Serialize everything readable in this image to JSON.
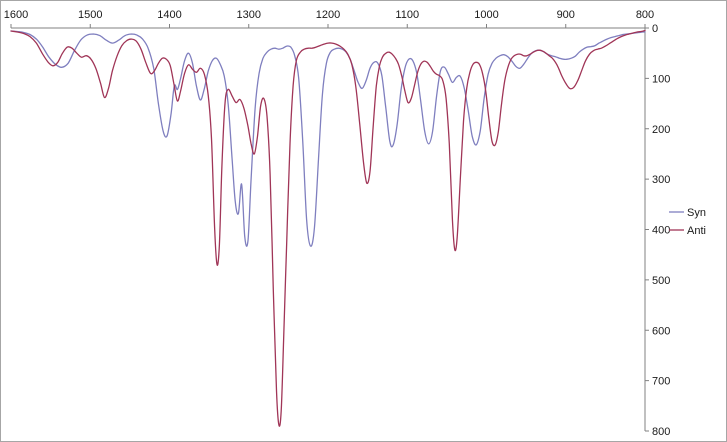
{
  "chart_data": {
    "type": "line",
    "title": "",
    "xlabel": "",
    "ylabel": "",
    "grid": false,
    "plot_border_color": "#a6a6a6",
    "axis_color": "#808080",
    "x_axis": {
      "position": "top",
      "reversed": true,
      "min": 800,
      "max": 1600,
      "ticks": [
        1600,
        1500,
        1400,
        1300,
        1200,
        1100,
        1000,
        900,
        800
      ]
    },
    "y_axis": {
      "position": "right",
      "reversed": true,
      "min": 0,
      "max": 800,
      "ticks": [
        0,
        100,
        200,
        300,
        400,
        500,
        600,
        700,
        800
      ]
    },
    "legend": {
      "position": "right",
      "entries": [
        "Syn",
        "Anti"
      ]
    },
    "series": [
      {
        "name": "Syn",
        "color": "#7f7fbf",
        "points": [
          [
            1600,
            6
          ],
          [
            1592,
            7
          ],
          [
            1584,
            9
          ],
          [
            1576,
            13
          ],
          [
            1568,
            22
          ],
          [
            1560,
            38
          ],
          [
            1552,
            58
          ],
          [
            1544,
            72
          ],
          [
            1536,
            78
          ],
          [
            1528,
            70
          ],
          [
            1520,
            45
          ],
          [
            1512,
            24
          ],
          [
            1504,
            14
          ],
          [
            1496,
            12
          ],
          [
            1488,
            15
          ],
          [
            1480,
            24
          ],
          [
            1472,
            30
          ],
          [
            1464,
            24
          ],
          [
            1456,
            15
          ],
          [
            1448,
            12
          ],
          [
            1441,
            14
          ],
          [
            1434,
            22
          ],
          [
            1427,
            40
          ],
          [
            1420,
            80
          ],
          [
            1414,
            150
          ],
          [
            1408,
            205
          ],
          [
            1403,
            214
          ],
          [
            1398,
            170
          ],
          [
            1394,
            115
          ],
          [
            1390,
            122
          ],
          [
            1386,
            100
          ],
          [
            1381,
            65
          ],
          [
            1376,
            50
          ],
          [
            1371,
            70
          ],
          [
            1366,
            115
          ],
          [
            1361,
            143
          ],
          [
            1356,
            120
          ],
          [
            1351,
            85
          ],
          [
            1346,
            65
          ],
          [
            1341,
            60
          ],
          [
            1336,
            72
          ],
          [
            1331,
            95
          ],
          [
            1326,
            150
          ],
          [
            1321,
            260
          ],
          [
            1317,
            345
          ],
          [
            1313,
            368
          ],
          [
            1309,
            310
          ],
          [
            1305,
            415
          ],
          [
            1301,
            422
          ],
          [
            1297,
            300
          ],
          [
            1292,
            160
          ],
          [
            1287,
            90
          ],
          [
            1282,
            60
          ],
          [
            1277,
            48
          ],
          [
            1272,
            42
          ],
          [
            1267,
            40
          ],
          [
            1262,
            42
          ],
          [
            1257,
            40
          ],
          [
            1252,
            36
          ],
          [
            1247,
            38
          ],
          [
            1242,
            55
          ],
          [
            1237,
            100
          ],
          [
            1232,
            220
          ],
          [
            1227,
            380
          ],
          [
            1222,
            433
          ],
          [
            1217,
            395
          ],
          [
            1212,
            260
          ],
          [
            1207,
            130
          ],
          [
            1202,
            70
          ],
          [
            1197,
            48
          ],
          [
            1192,
            42
          ],
          [
            1187,
            40
          ],
          [
            1182,
            42
          ],
          [
            1177,
            48
          ],
          [
            1172,
            62
          ],
          [
            1167,
            85
          ],
          [
            1162,
            108
          ],
          [
            1157,
            120
          ],
          [
            1152,
            105
          ],
          [
            1147,
            80
          ],
          [
            1142,
            68
          ],
          [
            1137,
            70
          ],
          [
            1132,
            95
          ],
          [
            1127,
            160
          ],
          [
            1122,
            225
          ],
          [
            1118,
            233
          ],
          [
            1113,
            195
          ],
          [
            1108,
            125
          ],
          [
            1103,
            80
          ],
          [
            1098,
            62
          ],
          [
            1093,
            65
          ],
          [
            1088,
            90
          ],
          [
            1083,
            145
          ],
          [
            1078,
            205
          ],
          [
            1073,
            230
          ],
          [
            1068,
            205
          ],
          [
            1063,
            135
          ],
          [
            1058,
            85
          ],
          [
            1053,
            78
          ],
          [
            1048,
            92
          ],
          [
            1043,
            108
          ],
          [
            1038,
            98
          ],
          [
            1033,
            96
          ],
          [
            1028,
            120
          ],
          [
            1023,
            165
          ],
          [
            1018,
            215
          ],
          [
            1013,
            232
          ],
          [
            1008,
            205
          ],
          [
            1003,
            140
          ],
          [
            998,
            92
          ],
          [
            993,
            70
          ],
          [
            988,
            60
          ],
          [
            983,
            55
          ],
          [
            978,
            53
          ],
          [
            973,
            57
          ],
          [
            968,
            66
          ],
          [
            963,
            76
          ],
          [
            958,
            80
          ],
          [
            953,
            72
          ],
          [
            948,
            60
          ],
          [
            943,
            50
          ],
          [
            938,
            45
          ],
          [
            933,
            44
          ],
          [
            928,
            47
          ],
          [
            923,
            52
          ],
          [
            918,
            55
          ],
          [
            913,
            57
          ],
          [
            908,
            60
          ],
          [
            903,
            62
          ],
          [
            898,
            62
          ],
          [
            893,
            60
          ],
          [
            888,
            56
          ],
          [
            883,
            48
          ],
          [
            878,
            42
          ],
          [
            873,
            38
          ],
          [
            868,
            37
          ],
          [
            863,
            35
          ],
          [
            858,
            30
          ],
          [
            853,
            26
          ],
          [
            848,
            22
          ],
          [
            843,
            19
          ],
          [
            838,
            17
          ],
          [
            833,
            15
          ],
          [
            828,
            13
          ],
          [
            823,
            12
          ],
          [
            818,
            11
          ],
          [
            813,
            10
          ],
          [
            808,
            9
          ],
          [
            803,
            8
          ],
          [
            800,
            8
          ]
        ]
      },
      {
        "name": "Anti",
        "color": "#a03557",
        "points": [
          [
            1600,
            6
          ],
          [
            1592,
            8
          ],
          [
            1584,
            11
          ],
          [
            1576,
            17
          ],
          [
            1568,
            30
          ],
          [
            1560,
            52
          ],
          [
            1553,
            68
          ],
          [
            1547,
            75
          ],
          [
            1541,
            68
          ],
          [
            1535,
            50
          ],
          [
            1529,
            38
          ],
          [
            1523,
            40
          ],
          [
            1517,
            50
          ],
          [
            1511,
            58
          ],
          [
            1505,
            55
          ],
          [
            1499,
            62
          ],
          [
            1493,
            80
          ],
          [
            1487,
            110
          ],
          [
            1482,
            138
          ],
          [
            1477,
            120
          ],
          [
            1472,
            85
          ],
          [
            1466,
            55
          ],
          [
            1460,
            35
          ],
          [
            1454,
            25
          ],
          [
            1448,
            22
          ],
          [
            1442,
            26
          ],
          [
            1436,
            42
          ],
          [
            1430,
            68
          ],
          [
            1424,
            90
          ],
          [
            1419,
            85
          ],
          [
            1414,
            70
          ],
          [
            1409,
            60
          ],
          [
            1404,
            62
          ],
          [
            1399,
            75
          ],
          [
            1394,
            115
          ],
          [
            1390,
            145
          ],
          [
            1386,
            125
          ],
          [
            1381,
            90
          ],
          [
            1376,
            73
          ],
          [
            1371,
            82
          ],
          [
            1366,
            88
          ],
          [
            1361,
            80
          ],
          [
            1356,
            92
          ],
          [
            1351,
            135
          ],
          [
            1347,
            220
          ],
          [
            1343,
            400
          ],
          [
            1340,
            470
          ],
          [
            1337,
            430
          ],
          [
            1334,
            280
          ],
          [
            1330,
            150
          ],
          [
            1326,
            122
          ],
          [
            1321,
            135
          ],
          [
            1316,
            148
          ],
          [
            1311,
            142
          ],
          [
            1306,
            160
          ],
          [
            1301,
            195
          ],
          [
            1297,
            230
          ],
          [
            1293,
            250
          ],
          [
            1289,
            215
          ],
          [
            1285,
            155
          ],
          [
            1281,
            140
          ],
          [
            1277,
            175
          ],
          [
            1273,
            290
          ],
          [
            1269,
            520
          ],
          [
            1265,
            720
          ],
          [
            1262,
            788
          ],
          [
            1259,
            760
          ],
          [
            1256,
            620
          ],
          [
            1252,
            420
          ],
          [
            1248,
            230
          ],
          [
            1244,
            115
          ],
          [
            1240,
            65
          ],
          [
            1235,
            48
          ],
          [
            1230,
            42
          ],
          [
            1225,
            40
          ],
          [
            1220,
            40
          ],
          [
            1215,
            38
          ],
          [
            1210,
            35
          ],
          [
            1205,
            32
          ],
          [
            1200,
            30
          ],
          [
            1195,
            30
          ],
          [
            1190,
            32
          ],
          [
            1185,
            36
          ],
          [
            1180,
            42
          ],
          [
            1175,
            52
          ],
          [
            1170,
            72
          ],
          [
            1165,
            115
          ],
          [
            1160,
            190
          ],
          [
            1155,
            270
          ],
          [
            1151,
            308
          ],
          [
            1147,
            285
          ],
          [
            1143,
            195
          ],
          [
            1139,
            115
          ],
          [
            1135,
            75
          ],
          [
            1131,
            57
          ],
          [
            1127,
            50
          ],
          [
            1123,
            48
          ],
          [
            1119,
            52
          ],
          [
            1115,
            60
          ],
          [
            1111,
            72
          ],
          [
            1107,
            95
          ],
          [
            1103,
            125
          ],
          [
            1099,
            148
          ],
          [
            1095,
            140
          ],
          [
            1091,
            115
          ],
          [
            1087,
            88
          ],
          [
            1083,
            72
          ],
          [
            1079,
            66
          ],
          [
            1075,
            68
          ],
          [
            1071,
            76
          ],
          [
            1067,
            86
          ],
          [
            1063,
            92
          ],
          [
            1059,
            95
          ],
          [
            1055,
            105
          ],
          [
            1051,
            140
          ],
          [
            1047,
            230
          ],
          [
            1043,
            380
          ],
          [
            1040,
            440
          ],
          [
            1037,
            415
          ],
          [
            1033,
            300
          ],
          [
            1029,
            185
          ],
          [
            1025,
            120
          ],
          [
            1021,
            88
          ],
          [
            1017,
            72
          ],
          [
            1013,
            68
          ],
          [
            1009,
            72
          ],
          [
            1005,
            90
          ],
          [
            1001,
            125
          ],
          [
            997,
            180
          ],
          [
            993,
            225
          ],
          [
            989,
            232
          ],
          [
            985,
            205
          ],
          [
            981,
            150
          ],
          [
            977,
            105
          ],
          [
            973,
            78
          ],
          [
            969,
            62
          ],
          [
            965,
            55
          ],
          [
            961,
            52
          ],
          [
            957,
            52
          ],
          [
            953,
            55
          ],
          [
            949,
            55
          ],
          [
            945,
            52
          ],
          [
            941,
            48
          ],
          [
            937,
            45
          ],
          [
            933,
            44
          ],
          [
            929,
            46
          ],
          [
            925,
            50
          ],
          [
            921,
            55
          ],
          [
            917,
            60
          ],
          [
            913,
            68
          ],
          [
            909,
            80
          ],
          [
            905,
            95
          ],
          [
            900,
            110
          ],
          [
            895,
            120
          ],
          [
            890,
            118
          ],
          [
            885,
            105
          ],
          [
            880,
            85
          ],
          [
            875,
            65
          ],
          [
            870,
            52
          ],
          [
            865,
            45
          ],
          [
            860,
            42
          ],
          [
            855,
            40
          ],
          [
            850,
            36
          ],
          [
            845,
            31
          ],
          [
            840,
            26
          ],
          [
            835,
            21
          ],
          [
            830,
            17
          ],
          [
            825,
            14
          ],
          [
            820,
            12
          ],
          [
            815,
            10
          ],
          [
            810,
            8
          ],
          [
            805,
            7
          ],
          [
            800,
            5
          ]
        ]
      }
    ]
  }
}
